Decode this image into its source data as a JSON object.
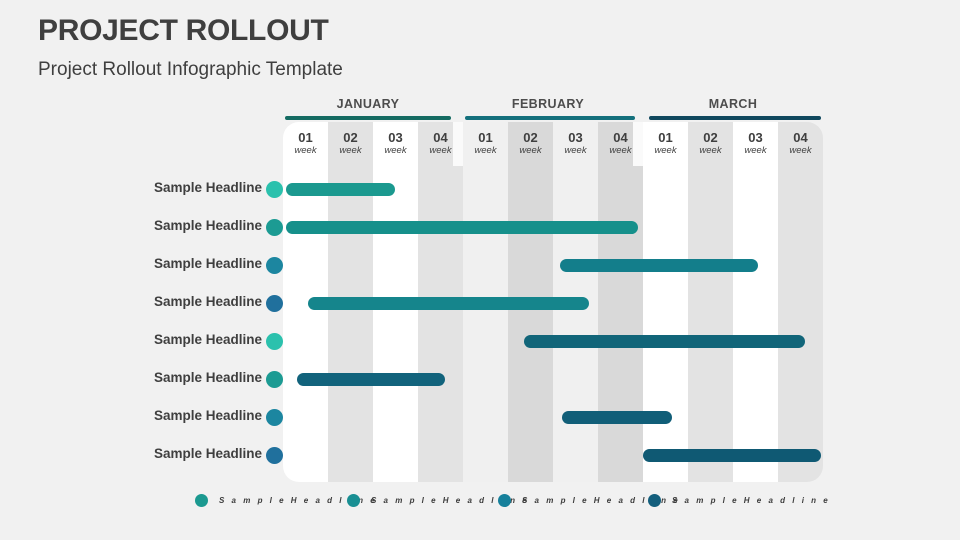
{
  "slide": {
    "title": "PROJECT ROLLOUT",
    "subtitle": "Project Rollout Infographic Template"
  },
  "chart_data": {
    "type": "gantt",
    "title": "PROJECT ROLLOUT",
    "timeline_unit": "week",
    "weeks_total": 12,
    "stripe_colors": [
      "#ffffff",
      "#e3e3e3",
      "#ffffff",
      "#e3e3e3",
      "#f0f0f0",
      "#d9d9d9",
      "#f0f0f0",
      "#d9d9d9",
      "#ffffff",
      "#e3e3e3",
      "#ffffff",
      "#e3e3e3"
    ],
    "months": [
      {
        "label": "JANUARY",
        "underline_color": "#156b62",
        "weeks": [
          {
            "num": "01",
            "cap": "week"
          },
          {
            "num": "02",
            "cap": "week"
          },
          {
            "num": "03",
            "cap": "week"
          },
          {
            "num": "04",
            "cap": "week"
          }
        ]
      },
      {
        "label": "FEBRUARY",
        "underline_color": "#14707c",
        "weeks": [
          {
            "num": "01",
            "cap": "week"
          },
          {
            "num": "02",
            "cap": "week"
          },
          {
            "num": "03",
            "cap": "week"
          },
          {
            "num": "04",
            "cap": "week"
          }
        ]
      },
      {
        "label": "MARCH",
        "underline_color": "#10485e",
        "weeks": [
          {
            "num": "01",
            "cap": "week"
          },
          {
            "num": "02",
            "cap": "week"
          },
          {
            "num": "03",
            "cap": "week"
          },
          {
            "num": "04",
            "cap": "week"
          }
        ]
      }
    ],
    "tasks": [
      {
        "label": "Sample Headline",
        "start_week": 0.07,
        "end_week": 2.5,
        "bar_color": "#1b998f",
        "dot_color": "#2bc1ad"
      },
      {
        "label": "Sample Headline",
        "start_week": 0.07,
        "end_week": 7.9,
        "bar_color": "#16908b",
        "dot_color": "#1c9b93"
      },
      {
        "label": "Sample Headline",
        "start_week": 6.15,
        "end_week": 10.55,
        "bar_color": "#137e8b",
        "dot_color": "#1c86a0"
      },
      {
        "label": "Sample Headline",
        "start_week": 0.55,
        "end_week": 6.8,
        "bar_color": "#15858c",
        "dot_color": "#20709d"
      },
      {
        "label": "Sample Headline",
        "start_week": 5.35,
        "end_week": 11.6,
        "bar_color": "#116579",
        "dot_color": "#2bc1ad"
      },
      {
        "label": "Sample Headline",
        "start_week": 0.3,
        "end_week": 3.6,
        "bar_color": "#12637c",
        "dot_color": "#1c9b93"
      },
      {
        "label": "Sample Headline",
        "start_week": 6.2,
        "end_week": 8.65,
        "bar_color": "#115e78",
        "dot_color": "#1c86a0"
      },
      {
        "label": "Sample Headline",
        "start_week": 8.0,
        "end_week": 11.95,
        "bar_color": "#0f5973",
        "dot_color": "#20709d"
      }
    ],
    "legend": [
      {
        "label": "S a m p l e   H e a d l i n e",
        "color": "#1b9990"
      },
      {
        "label": "S a m p l e   H e a d l i n e",
        "color": "#198f93"
      },
      {
        "label": "S a m p l e   H e a d l i n e",
        "color": "#16809b"
      },
      {
        "label": "S a m p l e   H e a d l i n e",
        "color": "#135e7c"
      }
    ]
  }
}
